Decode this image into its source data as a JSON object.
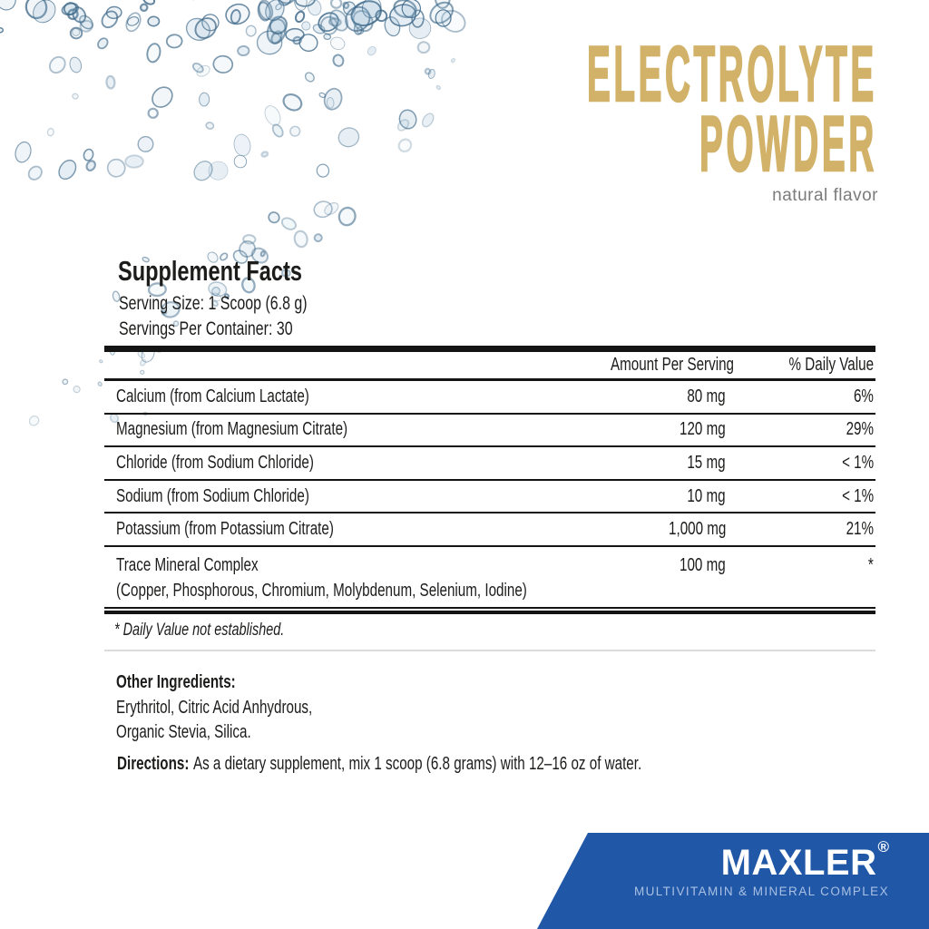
{
  "product": {
    "title_line1": "ELECTROLYTE",
    "title_line2": "POWDER",
    "flavor": "natural flavor"
  },
  "supplement_facts": {
    "heading": "Supplement Facts",
    "serving_size": "Serving Size: 1 Scoop (6.8 g)",
    "servings_per_container": "Servings Per Container: 30",
    "columns": {
      "amount": "Amount Per Serving",
      "dv": "% Daily Value"
    },
    "rows": [
      {
        "name": "Calcium (from Calcium Lactate)",
        "amount": "80 mg",
        "dv": "6%"
      },
      {
        "name": "Magnesium (from Magnesium Citrate)",
        "amount": "120 mg",
        "dv": "29%"
      },
      {
        "name": "Chloride (from Sodium Chloride)",
        "amount": "15 mg",
        "dv": "< 1%"
      },
      {
        "name": "Sodium (from Sodium Chloride)",
        "amount": "10 mg",
        "dv": "< 1%"
      },
      {
        "name": "Potassium (from Potassium Citrate)",
        "amount": "1,000 mg",
        "dv": "21%"
      },
      {
        "name": "Trace Mineral Complex",
        "sub": "(Copper, Phosphorous, Chromium, Molybdenum, Selenium, Iodine)",
        "amount": "100 mg",
        "dv": "*"
      }
    ],
    "footnote": "* Daily Value not established."
  },
  "other_ingredients": {
    "label": "Other Ingredients:",
    "line1": "Erythritol, Citric Acid Anhydrous,",
    "line2": "Organic Stevia, Silica."
  },
  "directions": {
    "label": "Directions:",
    "text": "As a dietary supplement, mix 1 scoop (6.8 grams) with 12–16 oz of water."
  },
  "brand": {
    "name": "MAXLER",
    "mark": "®",
    "tagline": "MULTIVITAMIN & MINERAL COMPLEX"
  },
  "colors": {
    "gold": "#d2b269",
    "banner": "#2057a7",
    "tagline": "#a9c0e4",
    "ink": "#1c1c1b",
    "gray": "#7b7b7b"
  }
}
